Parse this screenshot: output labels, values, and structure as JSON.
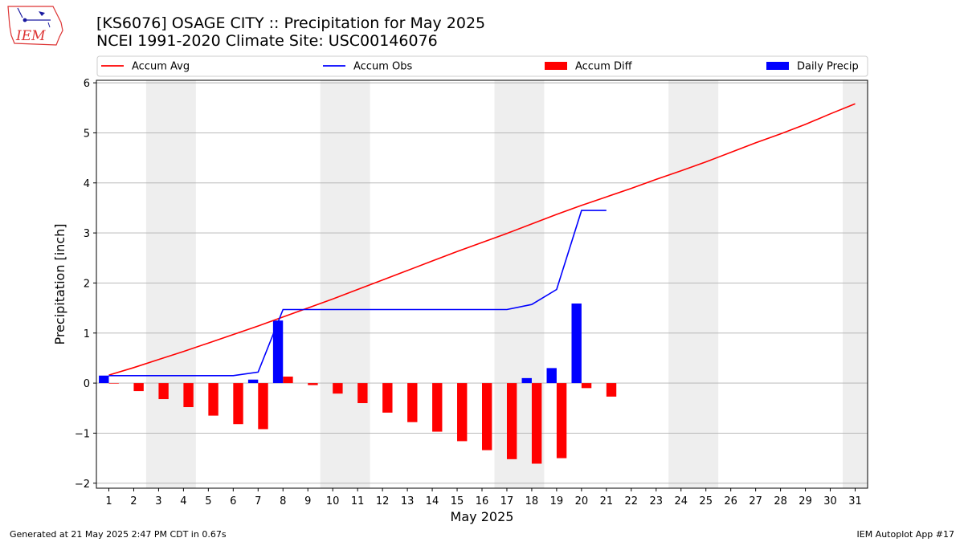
{
  "header": {
    "title_line1": "[KS6076] OSAGE CITY :: Precipitation for May 2025",
    "title_line2": "NCEI 1991-2020 Climate Site: USC00146076",
    "logo_text": "IEM"
  },
  "footer": {
    "generated": "Generated at 21 May 2025 2:47 PM CDT in 0.67s",
    "app": "IEM Autoplot App #17"
  },
  "colors": {
    "accum_avg": "#ff0000",
    "accum_obs": "#0000ff",
    "accum_diff": "#ff0000",
    "daily_precip": "#0000ff",
    "weekend_band": "#eeeeee",
    "grid": "#b0b0b0"
  },
  "chart_data": {
    "type": "bar",
    "xlabel": "May 2025",
    "ylabel": "Precipitation [inch]",
    "xlim": [
      0.5,
      31.5
    ],
    "ylim": [
      -2.1,
      6.05
    ],
    "grid": true,
    "legend_placement": "top",
    "x": [
      1,
      2,
      3,
      4,
      5,
      6,
      7,
      8,
      9,
      10,
      11,
      12,
      13,
      14,
      15,
      16,
      17,
      18,
      19,
      20,
      21,
      22,
      23,
      24,
      25,
      26,
      27,
      28,
      29,
      30,
      31
    ],
    "x_tick_labels": [
      "1",
      "2",
      "3",
      "4",
      "5",
      "6",
      "7",
      "8",
      "9",
      "10",
      "11",
      "12",
      "13",
      "14",
      "15",
      "16",
      "17",
      "18",
      "19",
      "20",
      "21",
      "22",
      "23",
      "24",
      "25",
      "26",
      "27",
      "28",
      "29",
      "30",
      "31"
    ],
    "y_ticks": [
      -2,
      -1,
      0,
      1,
      2,
      3,
      4,
      5,
      6
    ],
    "y_tick_labels": [
      "−2",
      "−1",
      "0",
      "1",
      "2",
      "3",
      "4",
      "5",
      "6"
    ],
    "weekend_bands": [
      [
        2.5,
        4.5
      ],
      [
        9.5,
        11.5
      ],
      [
        16.5,
        18.5
      ],
      [
        23.5,
        25.5
      ],
      [
        30.5,
        31.5
      ]
    ],
    "series": [
      {
        "name": "Accum Avg",
        "kind": "line",
        "x": [
          1,
          2,
          3,
          4,
          5,
          6,
          7,
          8,
          9,
          10,
          11,
          12,
          13,
          14,
          15,
          16,
          17,
          18,
          19,
          20,
          21,
          22,
          23,
          24,
          25,
          26,
          27,
          28,
          29,
          30,
          31
        ],
        "values": [
          0.16,
          0.31,
          0.47,
          0.63,
          0.8,
          0.97,
          1.14,
          1.32,
          1.5,
          1.68,
          1.87,
          2.06,
          2.25,
          2.44,
          2.63,
          2.81,
          2.99,
          3.18,
          3.37,
          3.55,
          3.72,
          3.89,
          4.07,
          4.24,
          4.42,
          4.61,
          4.8,
          4.98,
          5.17,
          5.38,
          5.58
        ]
      },
      {
        "name": "Accum Obs",
        "kind": "line",
        "x": [
          1,
          2,
          3,
          4,
          5,
          6,
          7,
          8,
          9,
          10,
          11,
          12,
          13,
          14,
          15,
          16,
          17,
          18,
          19,
          20,
          21
        ],
        "values": [
          0.15,
          0.15,
          0.15,
          0.15,
          0.15,
          0.15,
          0.22,
          1.47,
          1.47,
          1.47,
          1.47,
          1.47,
          1.47,
          1.47,
          1.47,
          1.47,
          1.47,
          1.57,
          1.87,
          3.45,
          3.45
        ]
      },
      {
        "name": "Accum Diff",
        "kind": "bar",
        "x": [
          1,
          2,
          3,
          4,
          5,
          6,
          7,
          8,
          9,
          10,
          11,
          12,
          13,
          14,
          15,
          16,
          17,
          18,
          19,
          20,
          21
        ],
        "values": [
          -0.01,
          -0.16,
          -0.32,
          -0.48,
          -0.65,
          -0.82,
          -0.92,
          0.13,
          -0.04,
          -0.21,
          -0.4,
          -0.59,
          -0.78,
          -0.97,
          -1.16,
          -1.34,
          -1.52,
          -1.61,
          -1.5,
          -0.1,
          -0.27
        ]
      },
      {
        "name": "Daily Precip",
        "kind": "bar",
        "x": [
          1,
          2,
          3,
          4,
          5,
          6,
          7,
          8,
          9,
          10,
          11,
          12,
          13,
          14,
          15,
          16,
          17,
          18,
          19,
          20,
          21
        ],
        "values": [
          0.15,
          0,
          0,
          0,
          0,
          0,
          0.07,
          1.25,
          0,
          0,
          0,
          0,
          0,
          0,
          0,
          0,
          0,
          0.1,
          0.3,
          1.59,
          0
        ]
      }
    ]
  }
}
